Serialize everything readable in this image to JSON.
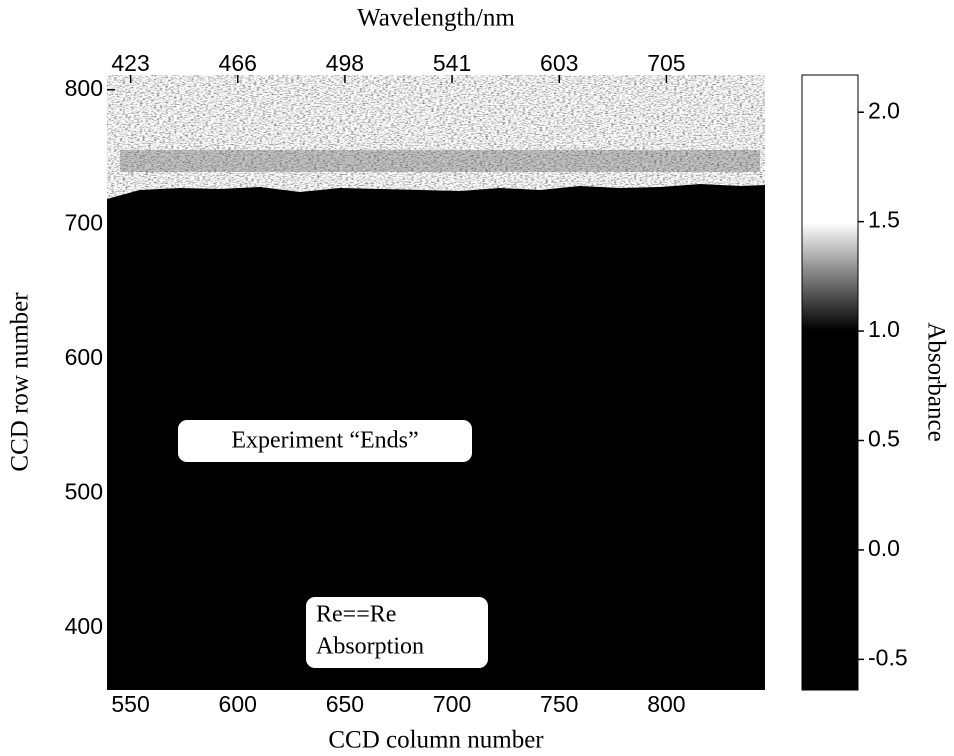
{
  "chart_data": {
    "type": "heatmap",
    "x_label": "CCD column number",
    "y_label": "CCD row number",
    "x2_label": "Wavelength/nm",
    "colorbar_label": "Absorbance",
    "xlim": [
      539,
      846
    ],
    "xticks": [
      550,
      600,
      650,
      700,
      750,
      800
    ],
    "x2ticks": [
      {
        "value": 550,
        "label": "423"
      },
      {
        "value": 600,
        "label": "466"
      },
      {
        "value": 650,
        "label": "498"
      },
      {
        "value": 700,
        "label": "541"
      },
      {
        "value": 750,
        "label": "603"
      },
      {
        "value": 800,
        "label": "705"
      }
    ],
    "ylim": [
      354,
      811
    ],
    "yticks": [
      400,
      500,
      600,
      700,
      800
    ],
    "clim": [
      -0.64,
      2.17
    ],
    "cticks": [
      {
        "value": -0.5,
        "label": "-0.5"
      },
      {
        "value": 0,
        "label": "0.0"
      },
      {
        "value": 0.5,
        "label": "0.5"
      },
      {
        "value": 1,
        "label": "1.0"
      },
      {
        "value": 1.5,
        "label": "1.5"
      },
      {
        "value": 2,
        "label": "2.0"
      }
    ],
    "colormap": [
      "#000000",
      "#ffffff"
    ],
    "annotations": [
      {
        "text": "Experiment “Ends”"
      },
      {
        "lines": [
          "Re==Re",
          "Absorption"
        ]
      }
    ]
  }
}
